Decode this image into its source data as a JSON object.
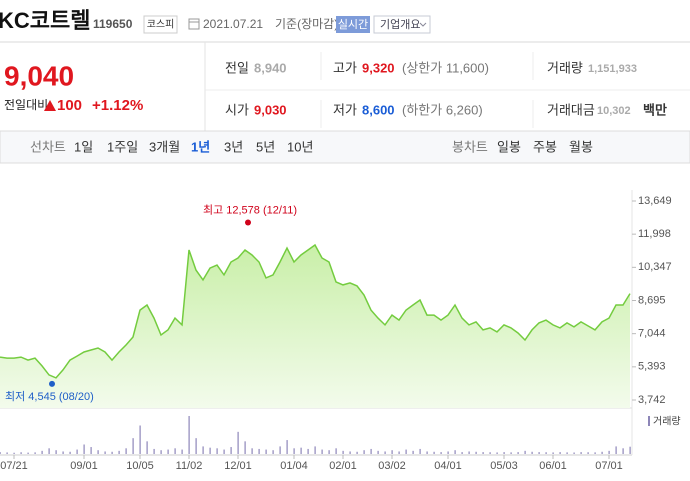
{
  "header": {
    "name": "KC코트렐",
    "code": "119650",
    "market": "코스피",
    "date": "2021.07.21",
    "basis": "기준(장마감)",
    "realtime": "실시간",
    "company": "기업개요"
  },
  "quote": {
    "price": "9,040",
    "change_label": "전일대비",
    "change": "100",
    "change_pct": "+1.12%"
  },
  "stats": {
    "prev": {
      "label": "전일",
      "value": "8,940"
    },
    "high": {
      "label": "고가",
      "value": "9,320",
      "limit": "(상한가 11,600)"
    },
    "volume": {
      "label": "거래량",
      "value": "1,151,933"
    },
    "open": {
      "label": "시가",
      "value": "9,030"
    },
    "low": {
      "label": "저가",
      "value": "8,600",
      "limit": "(하한가 6,260)"
    },
    "amount": {
      "label": "거래대금",
      "value": "10,302",
      "unit": "백만"
    }
  },
  "tabs": {
    "line_label": "선차트",
    "periods": [
      "1일",
      "1주일",
      "3개월",
      "1년",
      "3년",
      "5년",
      "10년"
    ],
    "candle_label": "봉차트",
    "candles": [
      "일봉",
      "주봉",
      "월봉"
    ]
  },
  "chart_data": {
    "type": "area",
    "color": "#74cc3f",
    "categories": [
      null,
      null,
      "07/21",
      null,
      null,
      null,
      null,
      null,
      null,
      null,
      null,
      null,
      "09/01",
      null,
      null,
      null,
      null,
      null,
      null,
      null,
      "10/05",
      null,
      null,
      null,
      null,
      null,
      null,
      "11/02",
      null,
      null,
      null,
      null,
      null,
      null,
      "12/01",
      null,
      null,
      null,
      null,
      null,
      null,
      null,
      "01/04",
      null,
      null,
      null,
      null,
      null,
      null,
      "02/01",
      null,
      null,
      null,
      null,
      null,
      null,
      "03/02",
      null,
      null,
      null,
      null,
      null,
      null,
      null,
      "04/01",
      null,
      null,
      null,
      null,
      null,
      null,
      null,
      "05/03",
      null,
      null,
      null,
      null,
      null,
      null,
      "06/01",
      null,
      null,
      null,
      null,
      null,
      null,
      null,
      "07/01",
      null,
      null,
      null
    ],
    "values": [
      5880,
      5830,
      5830,
      5880,
      5730,
      5830,
      5440,
      4990,
      4840,
      5240,
      5730,
      5930,
      6130,
      6230,
      6330,
      6130,
      5730,
      6130,
      6480,
      6880,
      8220,
      8470,
      7820,
      6980,
      7230,
      7820,
      7480,
      11210,
      10210,
      9720,
      10310,
      10460,
      9970,
      10610,
      10810,
      11210,
      10960,
      10610,
      9820,
      9970,
      10610,
      11310,
      10610,
      10960,
      11210,
      11460,
      10810,
      10610,
      9620,
      9470,
      9570,
      9420,
      8970,
      8220,
      7820,
      7480,
      7970,
      7720,
      8220,
      8470,
      8720,
      7970,
      7970,
      7720,
      7970,
      8470,
      7820,
      7480,
      7630,
      7230,
      7330,
      7130,
      7480,
      7330,
      7080,
      6730,
      7230,
      7580,
      7720,
      7480,
      7330,
      7580,
      7380,
      7630,
      7430,
      7230,
      7630,
      7820,
      8470,
      8470,
      9040
    ],
    "volume_label": "거래량",
    "volume_color": "#8d86b8",
    "volume": [
      300000,
      250000,
      200000,
      280000,
      220000,
      260000,
      500000,
      900000,
      600000,
      400000,
      350000,
      700000,
      1500000,
      1100000,
      600000,
      400000,
      350000,
      500000,
      900000,
      2500000,
      4500000,
      2000000,
      800000,
      600000,
      700000,
      900000,
      700000,
      6000000,
      2500000,
      1200000,
      1000000,
      900000,
      700000,
      1100000,
      3500000,
      2000000,
      900000,
      800000,
      700000,
      600000,
      1200000,
      2200000,
      900000,
      1000000,
      800000,
      1200000,
      700000,
      600000,
      900000,
      500000,
      400000,
      350000,
      600000,
      800000,
      500000,
      400000,
      600000,
      400000,
      700000,
      500000,
      800000,
      400000,
      350000,
      300000,
      400000,
      600000,
      300000,
      400000,
      350000,
      300000,
      280000,
      250000,
      300000,
      260000,
      300000,
      500000,
      350000,
      300000,
      280000,
      250000,
      300000,
      260000,
      240000,
      300000,
      280000,
      260000,
      350000,
      500000,
      1200000,
      900000,
      1151933
    ],
    "ylim": [
      3742,
      13649
    ],
    "yticks": [
      {
        "value": 13649,
        "label": "13,649"
      },
      {
        "value": 11998,
        "label": "11,998"
      },
      {
        "value": 10347,
        "label": "10,347"
      },
      {
        "value": 8695,
        "label": "8,695"
      },
      {
        "value": 7044,
        "label": "7,044"
      },
      {
        "value": 5393,
        "label": "5,393"
      },
      {
        "value": 3742,
        "label": "3,742"
      }
    ],
    "annotations": [
      {
        "text": "최고 12,578 (12/11)",
        "value": 12578,
        "color": "#d0021b"
      },
      {
        "text": "최저 4,545 (08/20)",
        "value": 4545,
        "color": "#1f5fc8"
      }
    ]
  }
}
